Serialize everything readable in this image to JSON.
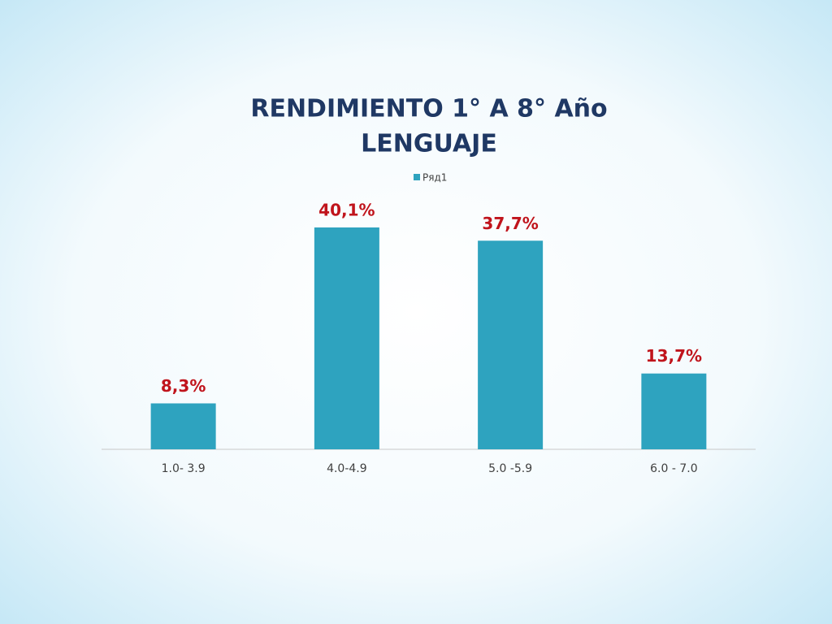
{
  "chart_data": {
    "type": "bar",
    "title": [
      "RENDIMIENTO 1° A 8° Año",
      "LENGUAJE"
    ],
    "categories": [
      "1.0- 3.9",
      "4.0-4.9",
      "5.0 -5.9",
      "6.0 - 7.0"
    ],
    "series": [
      {
        "name": "Ряд1",
        "color": "#2ea3bf",
        "values": [
          8.3,
          40.1,
          37.7,
          13.7
        ],
        "value_labels": [
          "8,3%",
          "40,1%",
          "37,7%",
          "13,7%"
        ]
      }
    ],
    "legend": "top"
  }
}
